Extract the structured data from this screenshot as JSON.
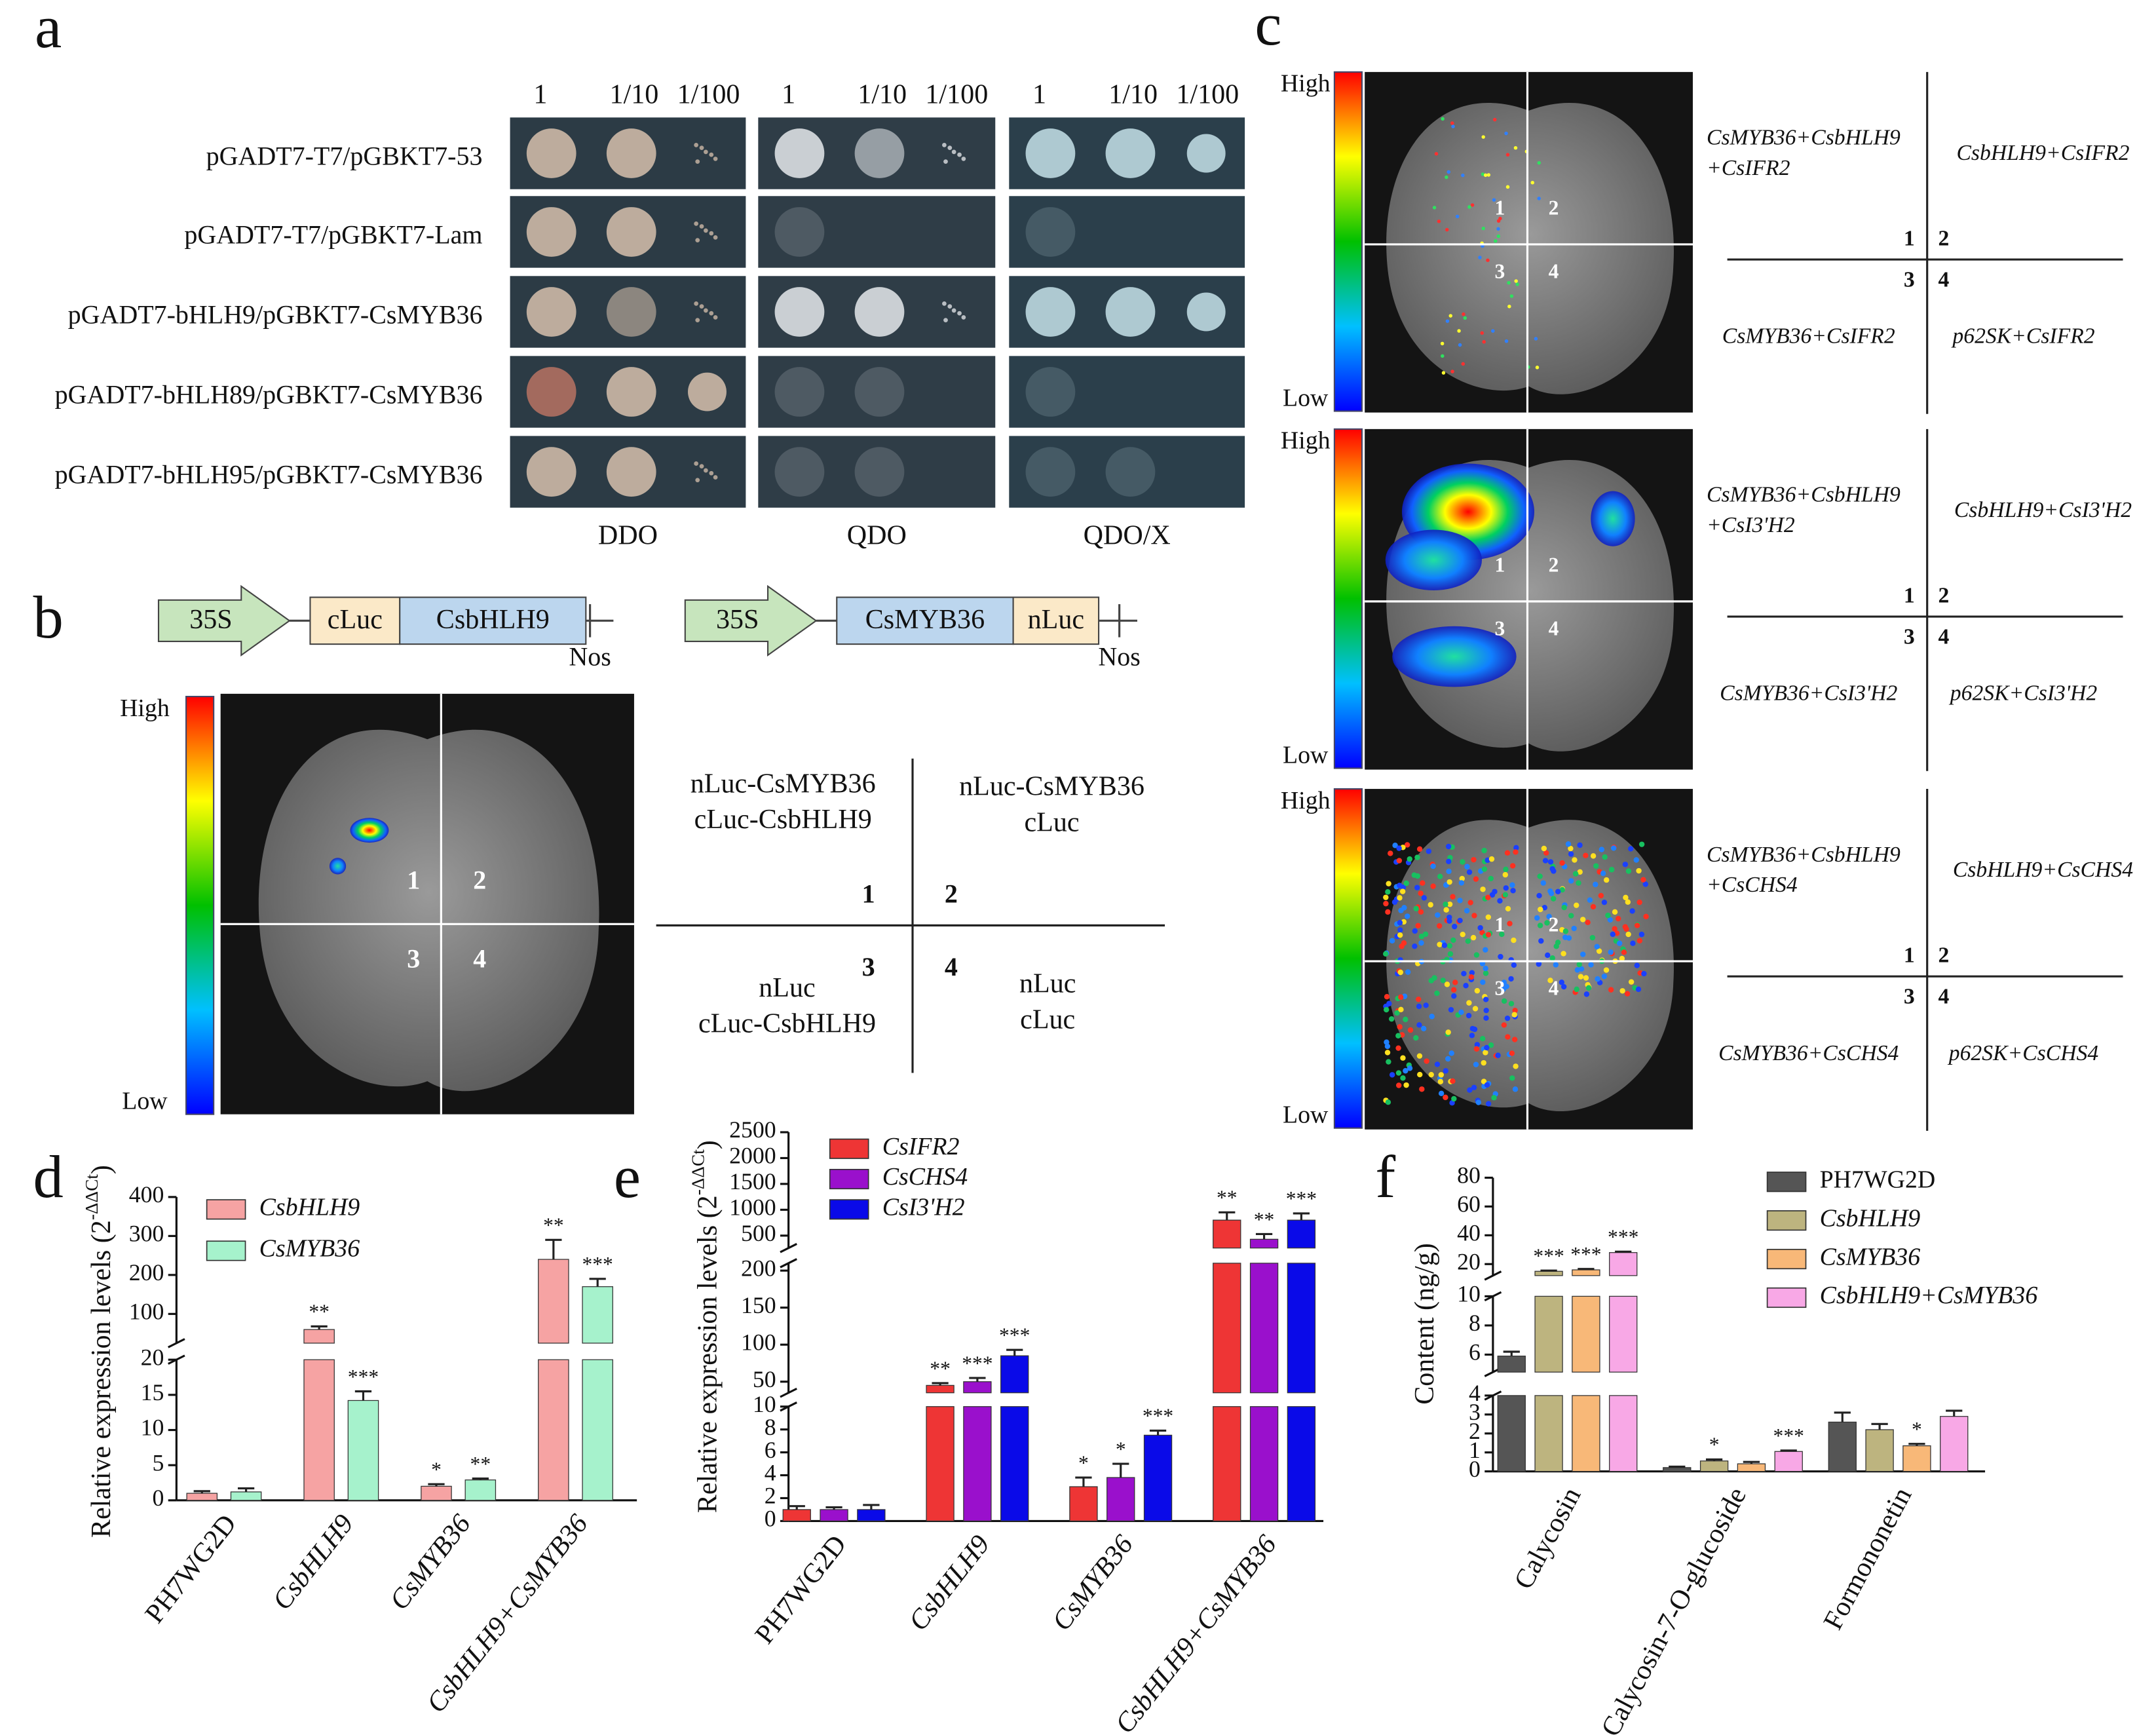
{
  "panel_labels": [
    "a",
    "b",
    "c",
    "d",
    "e",
    "f"
  ],
  "panel_a": {
    "dilutions": [
      "1",
      "1/10",
      "1/100"
    ],
    "rows": [
      "pGADT7-T7/pGBKT7-53",
      "pGADT7-T7/pGBKT7-Lam",
      "pGADT7-bHLH9/pGBKT7-CsMYB36",
      "pGADT7-bHLH89/pGBKT7-CsMYB36",
      "pGADT7-bHLH95/pGBKT7-CsMYB36"
    ],
    "media": [
      "DDO",
      "QDO",
      "QDO/X"
    ]
  },
  "panel_b": {
    "constructs": [
      {
        "promoter": "35S",
        "parts": [
          "cLuc",
          "CsbHLH9"
        ],
        "terminator": "Nos"
      },
      {
        "promoter": "35S",
        "parts": [
          "CsMYB36",
          "nLuc"
        ],
        "terminator": "Nos"
      }
    ],
    "scale": [
      "High",
      "Low"
    ],
    "quadrants": [
      "1",
      "2",
      "3",
      "4"
    ],
    "labels": [
      [
        "nLuc-CsMYB36",
        "cLuc-CsbHLH9"
      ],
      [
        "nLuc-CsMYB36",
        "cLuc"
      ],
      [
        "nLuc",
        "cLuc-CsbHLH9"
      ],
      [
        "nLuc",
        "cLuc"
      ]
    ]
  },
  "panel_c": {
    "scale": [
      "High",
      "Low"
    ],
    "quadrants": [
      "1",
      "2",
      "3",
      "4"
    ],
    "assays": [
      {
        "labels": [
          [
            "CsMYB36+CsbHLH9",
            "+CsIFR2"
          ],
          [
            "CsbHLH9+CsIFR2"
          ],
          [
            "CsMYB36+CsIFR2"
          ],
          [
            "p62SK+CsIFR2"
          ]
        ]
      },
      {
        "labels": [
          [
            "CsMYB36+CsbHLH9",
            "+CsI3'H2"
          ],
          [
            "CsbHLH9+CsI3'H2"
          ],
          [
            "CsMYB36+CsI3'H2"
          ],
          [
            "p62SK+CsI3'H2"
          ]
        ]
      },
      {
        "labels": [
          [
            "CsMYB36+CsbHLH9",
            "+CsCHS4"
          ],
          [
            "CsbHLH9+CsCHS4"
          ],
          [
            "CsMYB36+CsCHS4"
          ],
          [
            "p62SK+CsCHS4"
          ]
        ]
      }
    ]
  },
  "chart_data": [
    {
      "type": "bar",
      "y_label": {
        "text": "Relative expression levels (2",
        "superscript": "-ΔΔCt",
        "end": ")"
      },
      "categories": [
        "PH7WG2D",
        "CsbHLH9",
        "CsMYB36",
        "CsbHLH9+CsMYB36"
      ],
      "series": [
        {
          "name": "CsbHLH9",
          "color": "#f6a3a3",
          "values": [
            1,
            60,
            2,
            240
          ],
          "errors": [
            0.3,
            8,
            0.3,
            50
          ],
          "annotations": [
            null,
            "**",
            "*",
            "**"
          ]
        },
        {
          "name": "CsMYB36",
          "color": "#a6f2cc",
          "values": [
            1.2,
            14.2,
            2.9,
            170
          ],
          "errors": [
            0.5,
            1.3,
            0.2,
            20
          ],
          "annotations": [
            null,
            "***",
            "**",
            "***"
          ]
        }
      ],
      "axis_segments": [
        {
          "ylim": [
            0,
            20
          ],
          "yticks": [
            0,
            5,
            10,
            15,
            20
          ]
        },
        {
          "ylim": [
            25,
            400
          ],
          "yticks": [
            100,
            200,
            300,
            400
          ]
        }
      ]
    },
    {
      "type": "bar",
      "y_label": {
        "text": "Relative expression levels (2",
        "superscript": "-ΔΔCt",
        "end": ")"
      },
      "categories": [
        "PH7WG2D",
        "CsbHLH9",
        "CsMYB36",
        "CsbHLH9+CsMYB36"
      ],
      "series": [
        {
          "name": "CsIFR2",
          "color": "#ee3535",
          "values": [
            1,
            45,
            3,
            800
          ],
          "errors": [
            0.3,
            3,
            0.8,
            150
          ],
          "annotations": [
            null,
            "**",
            "*",
            "**"
          ]
        },
        {
          "name": "CsCHS4",
          "color": "#9a10cc",
          "values": [
            1,
            50,
            3.8,
            430
          ],
          "errors": [
            0.2,
            5,
            1.2,
            100
          ],
          "annotations": [
            null,
            "***",
            "*",
            "**"
          ]
        },
        {
          "name": "CsI3'H2",
          "color": "#0a0ae8",
          "values": [
            1,
            85,
            7.5,
            800
          ],
          "errors": [
            0.4,
            8,
            0.4,
            130
          ],
          "annotations": [
            null,
            "***",
            "***",
            "***"
          ]
        }
      ],
      "axis_segments": [
        {
          "ylim": [
            0,
            10
          ],
          "yticks": [
            0,
            2,
            4,
            6,
            8,
            10
          ]
        },
        {
          "ylim": [
            35,
            210
          ],
          "yticks": [
            50,
            100,
            150,
            200
          ]
        },
        {
          "ylim": [
            260,
            2500
          ],
          "yticks": [
            500,
            1000,
            1500,
            2000,
            2500
          ]
        }
      ]
    },
    {
      "type": "bar",
      "y_label": {
        "text": "Content (ng/g)"
      },
      "categories": [
        "Calycosin",
        "Calycosin-7-O-glucoside",
        "Formononetin"
      ],
      "series": [
        {
          "name": "PH7WG2D",
          "color": "#555555",
          "values": [
            5.9,
            0.2,
            2.6
          ],
          "errors": [
            0.3,
            0.05,
            0.5
          ],
          "annotations": [
            null,
            null,
            null
          ]
        },
        {
          "name": "CsbHLH9",
          "color": "#bdb47f",
          "values": [
            15,
            0.55,
            2.2
          ],
          "errors": [
            0.5,
            0.08,
            0.3
          ],
          "annotations": [
            "***",
            "*",
            null
          ]
        },
        {
          "name": "CsMYB36",
          "color": "#f8b878",
          "values": [
            16,
            0.4,
            1.35
          ],
          "errors": [
            0.6,
            0.1,
            0.1
          ],
          "annotations": [
            "***",
            null,
            "*"
          ]
        },
        {
          "name": "CsbHLH9+CsMYB36",
          "color": "#f8a8e6",
          "values": [
            28,
            1.05,
            2.9
          ],
          "errors": [
            0.6,
            0.05,
            0.3
          ],
          "annotations": [
            "***",
            "***",
            null
          ]
        }
      ],
      "axis_segments": [
        {
          "ylim": [
            0,
            4
          ],
          "yticks": [
            0,
            1,
            2,
            3,
            4
          ]
        },
        {
          "ylim": [
            4.8,
            10
          ],
          "yticks": [
            6,
            8,
            10
          ]
        },
        {
          "ylim": [
            12,
            80
          ],
          "yticks": [
            20,
            40,
            60,
            80
          ]
        }
      ]
    }
  ]
}
